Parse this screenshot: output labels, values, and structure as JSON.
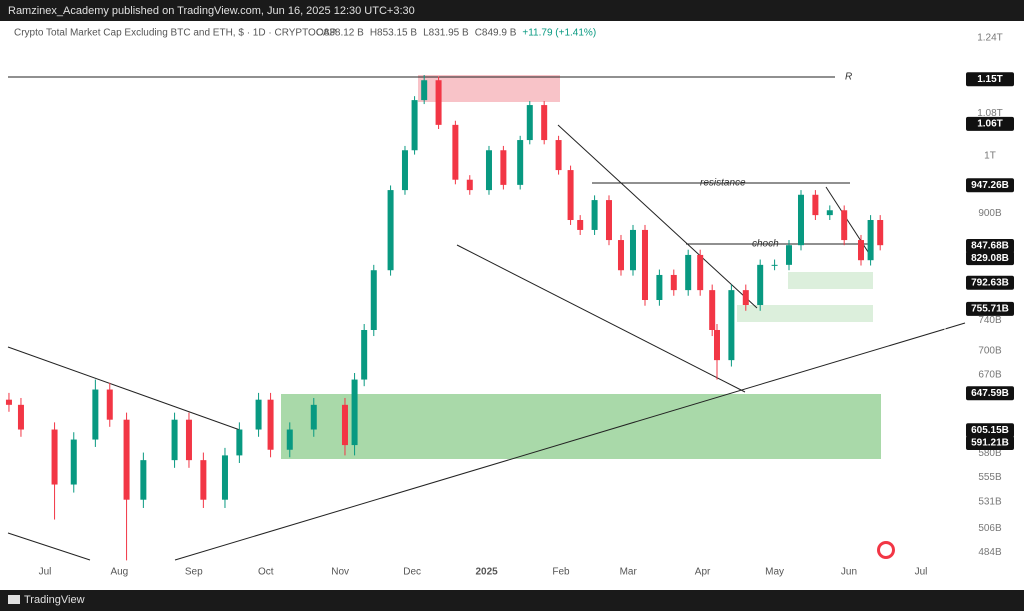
{
  "header": {
    "publisher": "Ramzinex_Academy published on TradingView.com, Jun 16, 2025 12:30 UTC+3:30"
  },
  "footer": {
    "brand": "TradingView"
  },
  "chart_data": {
    "type": "candlestick",
    "symbol": "Crypto Total Market Cap Excluding BTC and ETH, $ · 1D · CRYPTOCAP",
    "ohlc_text": [
      "O838.12 B",
      "H853.15 B",
      "L831.95 B",
      "C849.9 B",
      "+11.79 (+1.41%)"
    ],
    "log_scale": true,
    "grid": false,
    "up_color": "#089981",
    "down_color": "#f23645",
    "xlim": [
      -15.4,
      375
    ],
    "xticks": [
      {
        "value": 0,
        "label": "Jul"
      },
      {
        "value": 31,
        "label": "Aug"
      },
      {
        "value": 62,
        "label": "Sep"
      },
      {
        "value": 92,
        "label": "Oct"
      },
      {
        "value": 123,
        "label": "Nov"
      },
      {
        "value": 153,
        "label": "Dec"
      },
      {
        "value": 184,
        "label": "2025"
      },
      {
        "value": 215,
        "label": "Feb"
      },
      {
        "value": 243,
        "label": "Mar"
      },
      {
        "value": 274,
        "label": "Apr"
      },
      {
        "value": 304,
        "label": "May"
      },
      {
        "value": 335,
        "label": "Jun"
      },
      {
        "value": 365,
        "label": "Jul"
      }
    ],
    "ylim": [
      473,
      1277
    ],
    "yticks": [
      {
        "value": 1240,
        "label": "1.24T"
      },
      {
        "value": 1080,
        "label": "1.08T"
      },
      {
        "value": 1000,
        "label": "1T"
      },
      {
        "value": 900,
        "label": "900B"
      },
      {
        "value": 740,
        "label": "740B"
      },
      {
        "value": 700,
        "label": "700B"
      },
      {
        "value": 670,
        "label": "670B"
      },
      {
        "value": 580,
        "label": "580B"
      },
      {
        "value": 555,
        "label": "555B"
      },
      {
        "value": 531,
        "label": "531B"
      },
      {
        "value": 506,
        "label": "506B"
      },
      {
        "value": 484,
        "label": "484B"
      }
    ],
    "price_labels": [
      {
        "value": 1150,
        "label": "1.15T"
      },
      {
        "value": 1060,
        "label": "1.06T"
      },
      {
        "value": 947.26,
        "label": "947.26B"
      },
      {
        "value": 847.68,
        "label": "847.68B"
      },
      {
        "value": 829.08,
        "label": "829.08B"
      },
      {
        "value": 792.63,
        "label": "792.63B"
      },
      {
        "value": 755.71,
        "label": "755.71B"
      },
      {
        "value": 647.59,
        "label": "647.59B"
      },
      {
        "value": 605.15,
        "label": "605.15B"
      },
      {
        "value": 591.21,
        "label": "591.21B"
      }
    ],
    "annotations": [
      "R",
      "resistance",
      "choch"
    ],
    "x": [
      -15,
      -10,
      4,
      12,
      21,
      27,
      34,
      41,
      54,
      60,
      66,
      75,
      81,
      89,
      94,
      102,
      112,
      125,
      129,
      133,
      137,
      144,
      150,
      154,
      158,
      164,
      171,
      177,
      185,
      191,
      198,
      202,
      208,
      214,
      219,
      223,
      229,
      235,
      240,
      245,
      250,
      256,
      262,
      268,
      273,
      278,
      280,
      286,
      292,
      298,
      304,
      310,
      315,
      321,
      327,
      333,
      340,
      344,
      348
    ],
    "open": [
      640,
      634,
      606,
      548,
      595,
      652,
      617,
      533,
      573,
      617,
      573,
      533,
      578,
      606,
      640,
      584,
      606,
      634,
      589,
      664,
      727,
      811,
      939,
      1010,
      1107,
      1148,
      1058,
      957,
      939,
      1010,
      948,
      1029,
      1097,
      1029,
      974,
      889,
      873,
      922,
      857,
      811,
      873,
      768,
      804,
      782,
      834,
      782,
      727,
      688,
      782,
      761,
      819,
      819,
      849,
      931,
      897,
      905,
      857,
      826,
      889
    ],
    "high": [
      648,
      642,
      614,
      603,
      664,
      660,
      625,
      581,
      625,
      625,
      581,
      586,
      614,
      648,
      648,
      614,
      642,
      642,
      672,
      735,
      819,
      947,
      1018,
      1115,
      1159,
      1156,
      1066,
      965,
      1018,
      1018,
      1037,
      1105,
      1105,
      1037,
      982,
      897,
      930,
      930,
      865,
      881,
      881,
      812,
      812,
      842,
      842,
      790,
      735,
      790,
      790,
      827,
      827,
      857,
      939,
      939,
      913,
      913,
      865,
      897,
      897
    ],
    "low": [
      626,
      598,
      514,
      540,
      587,
      609,
      477,
      525,
      565,
      565,
      525,
      525,
      570,
      598,
      576,
      576,
      598,
      578,
      578,
      656,
      719,
      803,
      931,
      1002,
      1099,
      1050,
      949,
      931,
      931,
      940,
      940,
      1021,
      1021,
      966,
      881,
      865,
      865,
      849,
      803,
      803,
      760,
      760,
      774,
      774,
      774,
      719,
      664,
      680,
      753,
      753,
      811,
      811,
      841,
      889,
      889,
      849,
      818,
      818,
      841
    ],
    "close": [
      634,
      606,
      548,
      595,
      652,
      617,
      533,
      573,
      617,
      573,
      533,
      578,
      606,
      640,
      584,
      606,
      634,
      589,
      664,
      727,
      811,
      939,
      1010,
      1107,
      1148,
      1058,
      957,
      939,
      1010,
      948,
      1029,
      1097,
      1029,
      974,
      889,
      873,
      922,
      857,
      811,
      873,
      768,
      804,
      782,
      834,
      782,
      727,
      688,
      782,
      761,
      819,
      819,
      849,
      931,
      897,
      905,
      857,
      826,
      889,
      849
    ]
  }
}
